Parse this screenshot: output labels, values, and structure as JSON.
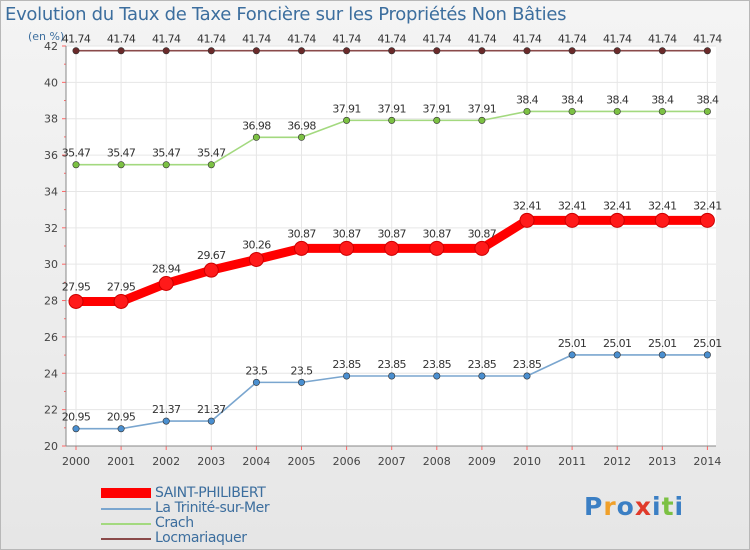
{
  "title": "Evolution du Taux de Taxe Foncière sur les Propriétés Non Bâties",
  "unit": "(en %)",
  "logo": [
    "P",
    "r",
    "o",
    "x",
    "i",
    "t",
    "i"
  ],
  "chart_data": {
    "type": "line",
    "title": "Evolution du Taux de Taxe Foncière sur les Propriétés Non Bâties",
    "ylabel": "(en %)",
    "xlabel": "",
    "x": [
      "2000",
      "2001",
      "2002",
      "2003",
      "2004",
      "2005",
      "2006",
      "2007",
      "2008",
      "2009",
      "2010",
      "2011",
      "2012",
      "2013",
      "2014"
    ],
    "ylim": [
      20,
      42
    ],
    "yticks": [
      "20",
      "22",
      "24",
      "26",
      "28",
      "30",
      "32",
      "34",
      "36",
      "38",
      "40",
      "42"
    ],
    "grid": true,
    "legend_position": "bottom-left",
    "series": [
      {
        "name": "SAINT-PHILIBERT",
        "color": "#ff0000",
        "emphasis": true,
        "values": [
          27.95,
          27.95,
          28.94,
          29.67,
          30.26,
          30.87,
          30.87,
          30.87,
          30.87,
          30.87,
          32.41,
          32.41,
          32.41,
          32.41,
          32.41
        ],
        "labels": [
          "27.95",
          "27.95",
          "28.94",
          "29.67",
          "30.26",
          "30.87",
          "30.87",
          "30.87",
          "30.87",
          "30.87",
          "32.41",
          "32.41",
          "32.41",
          "32.41",
          "32.41"
        ]
      },
      {
        "name": "La Trinité-sur-Mer",
        "color": "#7aa6cf",
        "marker": "#4a8fd0",
        "values": [
          20.95,
          20.95,
          21.37,
          21.37,
          23.5,
          23.5,
          23.85,
          23.85,
          23.85,
          23.85,
          23.85,
          25.01,
          25.01,
          25.01,
          25.01
        ],
        "labels": [
          "20.95",
          "20.95",
          "21.37",
          "21.37",
          "23.5",
          "23.5",
          "23.85",
          "23.85",
          "23.85",
          "23.85",
          "23.85",
          "25.01",
          "25.01",
          "25.01",
          "25.01"
        ]
      },
      {
        "name": "Crach",
        "color": "#a3d97f",
        "marker": "#7cc143",
        "values": [
          35.47,
          35.47,
          35.47,
          35.47,
          36.98,
          36.98,
          37.91,
          37.91,
          37.91,
          37.91,
          38.4,
          38.4,
          38.4,
          38.4,
          38.4
        ],
        "labels": [
          "35.47",
          "35.47",
          "35.47",
          "35.47",
          "36.98",
          "36.98",
          "37.91",
          "37.91",
          "37.91",
          "37.91",
          "38.4",
          "38.4",
          "38.4",
          "38.4",
          "38.4"
        ]
      },
      {
        "name": "Locmariaquer",
        "color": "#8a4a4a",
        "marker": "#6b2a2a",
        "values": [
          41.74,
          41.74,
          41.74,
          41.74,
          41.74,
          41.74,
          41.74,
          41.74,
          41.74,
          41.74,
          41.74,
          41.74,
          41.74,
          41.74,
          41.74
        ],
        "labels": [
          "41.74",
          "41.74",
          "41.74",
          "41.74",
          "41.74",
          "41.74",
          "41.74",
          "41.74",
          "41.74",
          "41.74",
          "41.74",
          "41.74",
          "41.74",
          "41.74",
          "41.74"
        ]
      }
    ]
  }
}
